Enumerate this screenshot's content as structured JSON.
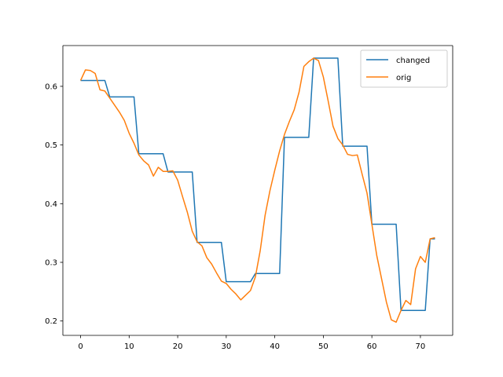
{
  "chart_data": {
    "type": "line",
    "title": "",
    "xlabel": "",
    "ylabel": "",
    "xlim": [
      -3.65,
      76.65
    ],
    "ylim": [
      0.1755,
      0.6695
    ],
    "xticks": [
      0,
      10,
      20,
      30,
      40,
      50,
      60,
      70
    ],
    "yticks": [
      0.2,
      0.3,
      0.4,
      0.5,
      0.6
    ],
    "ytick_labels": [
      "0.2",
      "0.3",
      "0.4",
      "0.5",
      "0.6"
    ],
    "grid": false,
    "legend_position": "top-right",
    "series": [
      {
        "name": "changed",
        "color": "#1f77b4",
        "x": [
          0,
          1,
          2,
          3,
          4,
          5,
          6,
          7,
          8,
          9,
          10,
          11,
          12,
          13,
          14,
          15,
          16,
          17,
          18,
          19,
          20,
          21,
          22,
          23,
          24,
          25,
          26,
          27,
          28,
          29,
          30,
          31,
          32,
          33,
          34,
          35,
          36,
          37,
          38,
          39,
          40,
          41,
          42,
          43,
          44,
          45,
          46,
          47,
          48,
          49,
          50,
          51,
          52,
          53,
          54,
          55,
          56,
          57,
          58,
          59,
          60,
          61,
          62,
          63,
          64,
          65,
          66,
          67,
          68,
          69,
          70,
          71,
          72,
          73
        ],
        "y": [
          0.61,
          0.61,
          0.61,
          0.61,
          0.61,
          0.61,
          0.582,
          0.582,
          0.582,
          0.582,
          0.582,
          0.582,
          0.485,
          0.485,
          0.485,
          0.485,
          0.485,
          0.485,
          0.454,
          0.454,
          0.454,
          0.454,
          0.454,
          0.454,
          0.334,
          0.334,
          0.334,
          0.334,
          0.334,
          0.334,
          0.267,
          0.267,
          0.267,
          0.267,
          0.267,
          0.267,
          0.281,
          0.281,
          0.281,
          0.281,
          0.281,
          0.281,
          0.513,
          0.513,
          0.513,
          0.513,
          0.513,
          0.513,
          0.648,
          0.648,
          0.648,
          0.648,
          0.648,
          0.648,
          0.498,
          0.498,
          0.498,
          0.498,
          0.498,
          0.498,
          0.365,
          0.365,
          0.365,
          0.365,
          0.365,
          0.365,
          0.218,
          0.218,
          0.218,
          0.218,
          0.218,
          0.218,
          0.34,
          0.34
        ]
      },
      {
        "name": "orig",
        "color": "#ff7f0e",
        "x": [
          0,
          1,
          2,
          3,
          4,
          5,
          6,
          7,
          8,
          9,
          10,
          11,
          12,
          13,
          14,
          15,
          16,
          17,
          18,
          19,
          20,
          21,
          22,
          23,
          24,
          25,
          26,
          27,
          28,
          29,
          30,
          31,
          32,
          33,
          34,
          35,
          36,
          37,
          38,
          39,
          40,
          41,
          42,
          43,
          44,
          45,
          46,
          47,
          48,
          49,
          50,
          51,
          52,
          53,
          54,
          55,
          56,
          57,
          58,
          59,
          60,
          61,
          62,
          63,
          64,
          65,
          66,
          67,
          68,
          69,
          70,
          71,
          72,
          73
        ],
        "y": [
          0.61,
          0.628,
          0.627,
          0.622,
          0.594,
          0.592,
          0.58,
          0.568,
          0.556,
          0.542,
          0.52,
          0.503,
          0.483,
          0.473,
          0.466,
          0.447,
          0.462,
          0.455,
          0.455,
          0.456,
          0.44,
          0.412,
          0.385,
          0.353,
          0.335,
          0.328,
          0.308,
          0.297,
          0.282,
          0.268,
          0.264,
          0.254,
          0.246,
          0.236,
          0.244,
          0.252,
          0.275,
          0.32,
          0.38,
          0.422,
          0.457,
          0.49,
          0.518,
          0.54,
          0.56,
          0.59,
          0.634,
          0.642,
          0.648,
          0.644,
          0.616,
          0.575,
          0.532,
          0.511,
          0.5,
          0.484,
          0.482,
          0.483,
          0.45,
          0.418,
          0.365,
          0.312,
          0.272,
          0.232,
          0.202,
          0.198,
          0.218,
          0.235,
          0.228,
          0.289,
          0.31,
          0.3,
          0.34,
          0.342
        ]
      }
    ]
  }
}
